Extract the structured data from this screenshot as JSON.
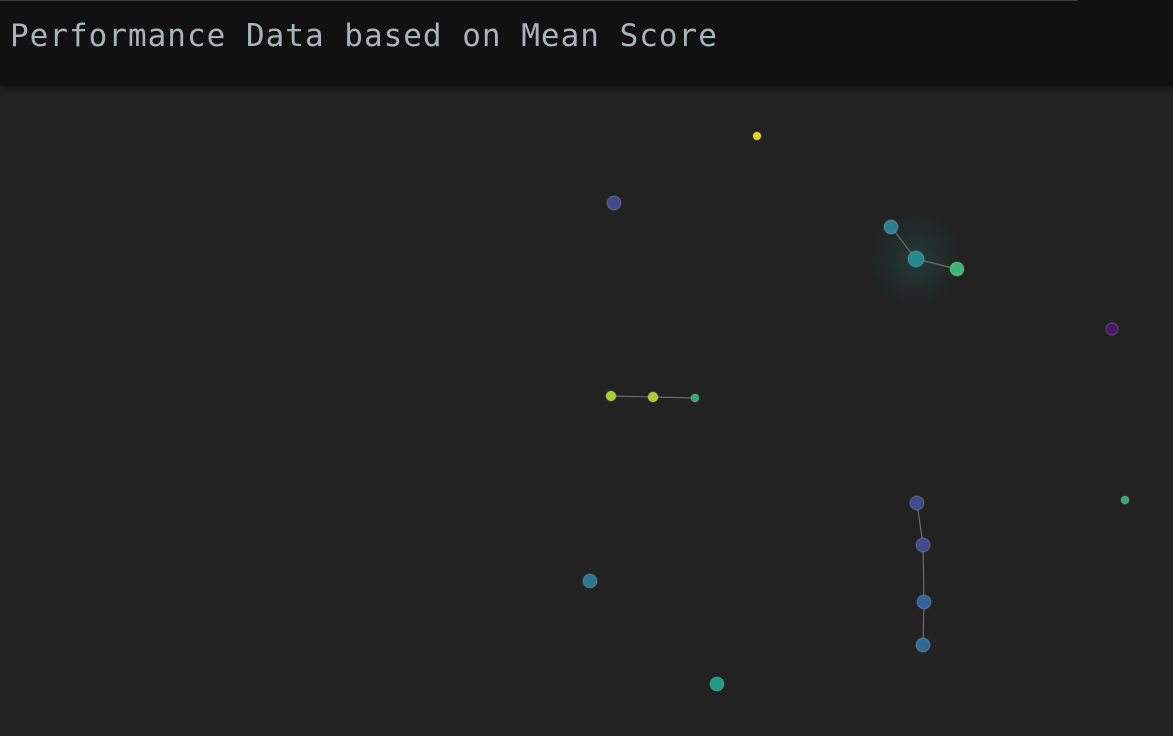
{
  "header": {
    "title": "Performance Data based on Mean Score"
  },
  "chart_data": {
    "type": "scatter",
    "title": "Performance Data based on Mean Score",
    "xlabel": "",
    "ylabel": "",
    "axes_visible": false,
    "grid": false,
    "legend": "none",
    "color_scale": "viridis",
    "background": "#222222",
    "xlim": [
      0,
      1173
    ],
    "ylim": [
      736,
      90
    ],
    "points": [
      {
        "id": "p1",
        "x": 757,
        "y": 136,
        "value": 0.95,
        "color": "#e3d31d",
        "size": 4
      },
      {
        "id": "p2",
        "x": 614,
        "y": 203,
        "value": 0.22,
        "color": "#414a8c",
        "size": 7
      },
      {
        "id": "p3",
        "x": 891,
        "y": 227,
        "value": 0.45,
        "color": "#2b7f95",
        "size": 7
      },
      {
        "id": "p4",
        "x": 916,
        "y": 259,
        "value": 0.5,
        "color": "#23898e",
        "size": 8,
        "highlight": true
      },
      {
        "id": "p5",
        "x": 957,
        "y": 269,
        "value": 0.68,
        "color": "#3cb770",
        "size": 7
      },
      {
        "id": "p6",
        "x": 1112,
        "y": 329,
        "value": 0.05,
        "color": "#49186c",
        "size": 6
      },
      {
        "id": "p7",
        "x": 611,
        "y": 396,
        "value": 0.86,
        "color": "#a9cf2c",
        "size": 5
      },
      {
        "id": "p8",
        "x": 653,
        "y": 397,
        "value": 0.86,
        "color": "#a9cf2c",
        "size": 5
      },
      {
        "id": "p9",
        "x": 695,
        "y": 398,
        "value": 0.66,
        "color": "#35a96d",
        "size": 4
      },
      {
        "id": "p10",
        "x": 917,
        "y": 503,
        "value": 0.2,
        "color": "#3f4a8a",
        "size": 7
      },
      {
        "id": "p11",
        "x": 1125,
        "y": 500,
        "value": 0.66,
        "color": "#35a96d",
        "size": 4
      },
      {
        "id": "p12",
        "x": 923,
        "y": 545,
        "value": 0.22,
        "color": "#414a8c",
        "size": 7
      },
      {
        "id": "p13",
        "x": 590,
        "y": 581,
        "value": 0.4,
        "color": "#2b7690",
        "size": 7
      },
      {
        "id": "p14",
        "x": 924,
        "y": 602,
        "value": 0.3,
        "color": "#35629a",
        "size": 7
      },
      {
        "id": "p15",
        "x": 923,
        "y": 645,
        "value": 0.34,
        "color": "#306a97",
        "size": 7
      },
      {
        "id": "p16",
        "x": 717,
        "y": 684,
        "value": 0.55,
        "color": "#1d9c84",
        "size": 7
      }
    ],
    "links": [
      {
        "source": "p3",
        "target": "p4"
      },
      {
        "source": "p4",
        "target": "p5"
      },
      {
        "source": "p7",
        "target": "p8"
      },
      {
        "source": "p8",
        "target": "p9"
      },
      {
        "source": "p10",
        "target": "p12"
      },
      {
        "source": "p12",
        "target": "p14"
      },
      {
        "source": "p14",
        "target": "p15"
      }
    ],
    "link_color": "#6b6b6b"
  }
}
